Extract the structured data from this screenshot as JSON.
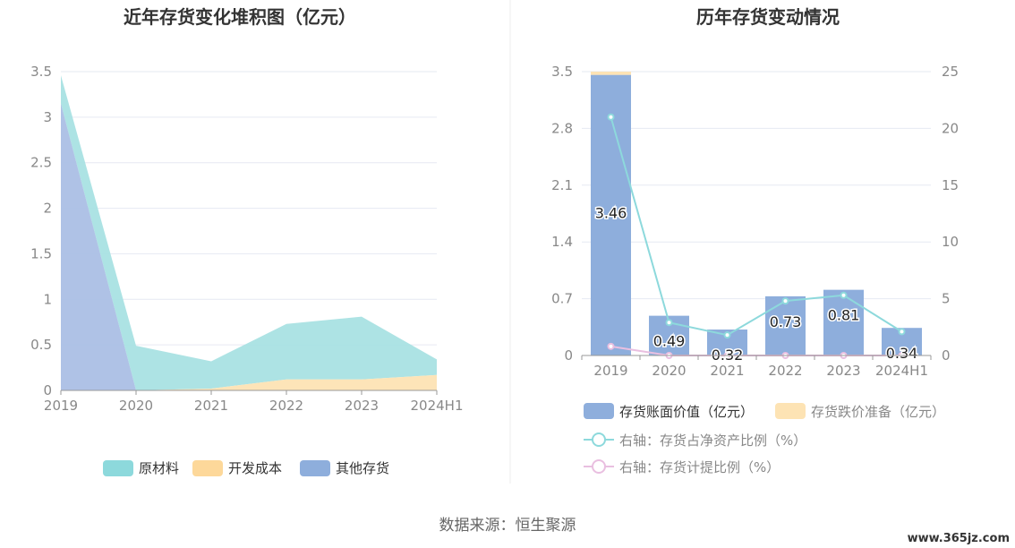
{
  "source": "数据来源：恒生聚源",
  "watermark": "www.365jz.com",
  "colors": {
    "raw": "#a9e1e3",
    "dev": "#fde3b4",
    "other": "#abbfe5",
    "bar": "#8eaedc",
    "bar_top": "#fde3b4",
    "line1": "#8dd9dc",
    "line2": "#e9bfe0",
    "grid": "#e6e9f2",
    "axis": "#999999"
  },
  "chart_data": [
    {
      "type": "area",
      "title": "近年存货变化堆积图（亿元）",
      "categories": [
        "2019",
        "2020",
        "2021",
        "2022",
        "2023",
        "2024H1"
      ],
      "yticks": [
        "0",
        "0.5",
        "1",
        "1.5",
        "2",
        "2.5",
        "3",
        "3.5"
      ],
      "ylim": [
        0,
        3.5
      ],
      "stacked": true,
      "series": [
        {
          "name": "其他存货",
          "values": [
            3.15,
            0,
            0,
            0,
            0,
            0
          ]
        },
        {
          "name": "开发成本",
          "values": [
            0,
            0,
            0.02,
            0.12,
            0.12,
            0.17
          ]
        },
        {
          "name": "原材料",
          "values": [
            0.31,
            0.49,
            0.3,
            0.61,
            0.69,
            0.17
          ]
        }
      ],
      "legend": [
        "原材料",
        "开发成本",
        "其他存货"
      ],
      "legend_position": "bottom",
      "grid": true
    },
    {
      "type": "bar",
      "title": "历年存货变动情况",
      "categories": [
        "2019",
        "2020",
        "2021",
        "2022",
        "2023",
        "2024H1"
      ],
      "yticks_left": [
        "0",
        "0.7",
        "1.4",
        "2.1",
        "2.8",
        "3.5"
      ],
      "yticks_right": [
        "0",
        "5",
        "10",
        "15",
        "20",
        "25"
      ],
      "ylim_left": [
        0,
        3.5
      ],
      "ylim_right": [
        0,
        25
      ],
      "bars": [
        {
          "name": "存货账面价值（亿元）",
          "values": [
            3.46,
            0.49,
            0.32,
            0.73,
            0.81,
            0.34
          ],
          "labels": [
            "3.46",
            "0.49",
            "0.32",
            "0.73",
            "0.81",
            "0.34"
          ]
        },
        {
          "name": "存货跌价准备（亿元）",
          "values": [
            0.04,
            0,
            0,
            0,
            0,
            0
          ]
        }
      ],
      "lines": [
        {
          "name": "右轴：存货占净资产比例（%）",
          "values": [
            21.0,
            2.9,
            1.8,
            4.8,
            5.3,
            2.1
          ]
        },
        {
          "name": "右轴：存货计提比例（%）",
          "values": [
            0.8,
            0.0,
            0.0,
            0.0,
            0.0,
            0.0
          ]
        }
      ],
      "legend_position": "bottom",
      "grid": true
    }
  ]
}
